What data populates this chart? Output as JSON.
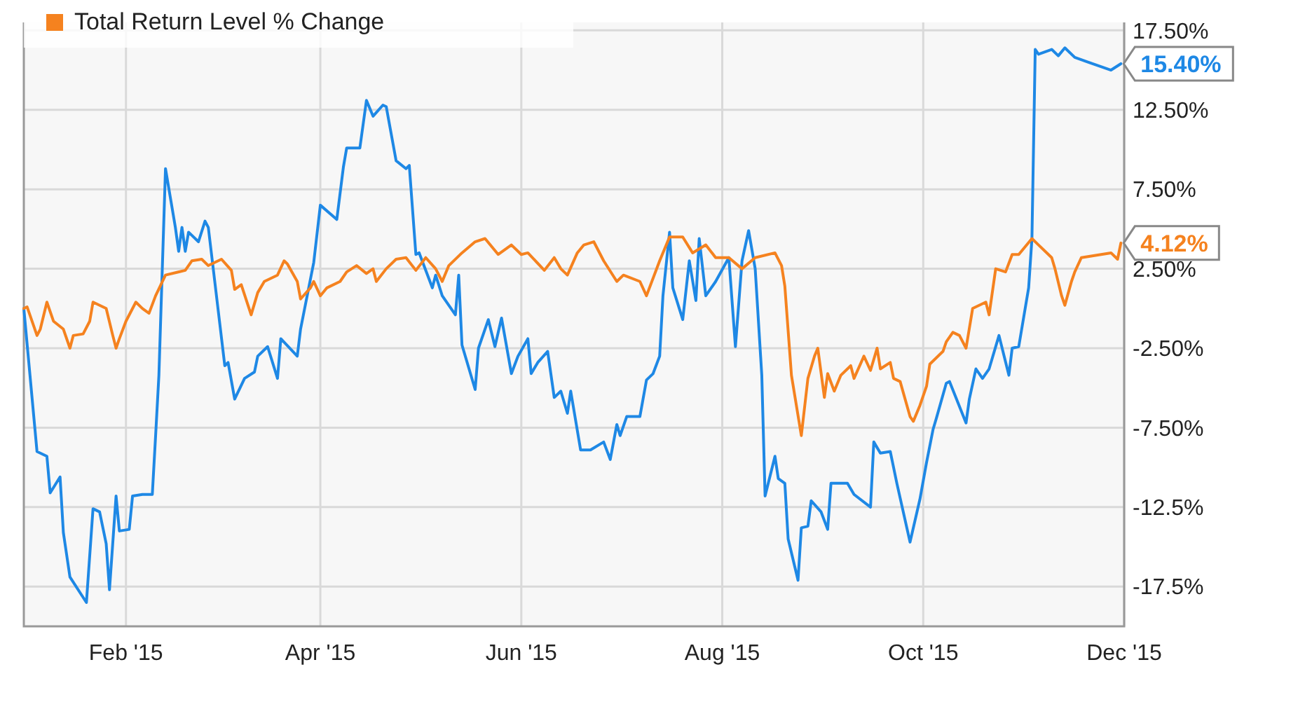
{
  "chart_data": {
    "type": "line",
    "xlim": [
      "2015-01-01",
      "2015-12-01"
    ],
    "ylim": [
      -20,
      18
    ],
    "xticks": [
      {
        "value": "2015-02-01",
        "label": "Feb '15"
      },
      {
        "value": "2015-04-01",
        "label": "Apr '15"
      },
      {
        "value": "2015-06-01",
        "label": "Jun '15"
      },
      {
        "value": "2015-08-01",
        "label": "Aug '15"
      },
      {
        "value": "2015-10-01",
        "label": "Oct '15"
      },
      {
        "value": "2015-12-01",
        "label": "Dec '15"
      }
    ],
    "yticks": [
      {
        "value": 17.5,
        "label": "17.50%"
      },
      {
        "value": 12.5,
        "label": "12.50%"
      },
      {
        "value": 7.5,
        "label": "7.50%"
      },
      {
        "value": 2.5,
        "label": "2.50%"
      },
      {
        "value": -2.5,
        "label": "-2.50%"
      },
      {
        "value": -7.5,
        "label": "-7.50%"
      },
      {
        "value": -12.5,
        "label": "-12.5%"
      },
      {
        "value": -17.5,
        "label": "-17.5%"
      }
    ],
    "grid": true,
    "legend": "top left",
    "marker": "none",
    "line_style": "solid",
    "series": [
      {
        "color": "#1e88e5",
        "x": [
          "2015-01-01",
          "2015-01-05",
          "2015-01-08",
          "2015-01-09",
          "2015-01-12",
          "2015-01-13",
          "2015-01-15",
          "2015-01-20",
          "2015-01-22",
          "2015-01-24",
          "2015-01-26",
          "2015-01-27",
          "2015-01-29",
          "2015-01-30",
          "2015-02-02",
          "2015-02-03",
          "2015-02-06",
          "2015-02-09",
          "2015-02-10",
          "2015-02-11",
          "2015-02-13",
          "2015-02-16",
          "2015-02-17",
          "2015-02-18",
          "2015-02-19",
          "2015-02-20",
          "2015-02-23",
          "2015-02-25",
          "2015-02-26",
          "2015-03-03",
          "2015-03-04",
          "2015-03-06",
          "2015-03-09",
          "2015-03-12",
          "2015-03-13",
          "2015-03-16",
          "2015-03-19",
          "2015-03-20",
          "2015-03-25",
          "2015-03-26",
          "2015-03-30",
          "2015-04-01",
          "2015-04-06",
          "2015-04-08",
          "2015-04-09",
          "2015-04-13",
          "2015-04-15",
          "2015-04-17",
          "2015-04-20",
          "2015-04-21",
          "2015-04-24",
          "2015-04-27",
          "2015-04-28",
          "2015-04-30",
          "2015-05-01",
          "2015-05-05",
          "2015-05-06",
          "2015-05-08",
          "2015-05-12",
          "2015-05-13",
          "2015-05-14",
          "2015-05-18",
          "2015-05-19",
          "2015-05-22",
          "2015-05-24",
          "2015-05-26",
          "2015-05-29",
          "2015-05-31",
          "2015-06-03",
          "2015-06-04",
          "2015-06-06",
          "2015-06-09",
          "2015-06-11",
          "2015-06-13",
          "2015-06-15",
          "2015-06-16",
          "2015-06-19",
          "2015-06-22",
          "2015-06-26",
          "2015-06-28",
          "2015-06-30",
          "2015-07-01",
          "2015-07-03",
          "2015-07-07",
          "2015-07-09",
          "2015-07-11",
          "2015-07-13",
          "2015-07-14",
          "2015-07-16",
          "2015-07-17",
          "2015-07-20",
          "2015-07-22",
          "2015-07-24",
          "2015-07-25",
          "2015-07-27",
          "2015-07-30",
          "2015-08-03",
          "2015-08-05",
          "2015-08-07",
          "2015-08-09",
          "2015-08-11",
          "2015-08-13",
          "2015-08-14",
          "2015-08-17",
          "2015-08-18",
          "2015-08-20",
          "2015-08-21",
          "2015-08-24",
          "2015-08-25",
          "2015-08-27",
          "2015-08-28",
          "2015-08-31",
          "2015-09-02",
          "2015-09-03",
          "2015-09-08",
          "2015-09-10",
          "2015-09-15",
          "2015-09-16",
          "2015-09-18",
          "2015-09-21",
          "2015-09-23",
          "2015-09-27",
          "2015-09-30",
          "2015-10-02",
          "2015-10-04",
          "2015-10-05",
          "2015-10-08",
          "2015-10-09",
          "2015-10-14",
          "2015-10-15",
          "2015-10-17",
          "2015-10-19",
          "2015-10-21",
          "2015-10-24",
          "2015-10-27",
          "2015-10-28",
          "2015-10-30",
          "2015-11-02",
          "2015-11-03",
          "2015-11-04",
          "2015-11-05",
          "2015-11-09",
          "2015-11-11",
          "2015-11-13",
          "2015-11-16",
          "2015-11-20",
          "2015-11-27",
          "2015-11-30"
        ],
        "values": [
          0,
          -9.0,
          -9.3,
          -11.6,
          -10.6,
          -14.1,
          -16.9,
          -18.5,
          -12.6,
          -12.8,
          -14.8,
          -17.7,
          -11.8,
          -14.0,
          -13.9,
          -11.8,
          -11.7,
          -11.7,
          -8.0,
          -4.2,
          8.8,
          5.1,
          3.6,
          5.1,
          3.6,
          4.8,
          4.2,
          5.5,
          5.1,
          -3.6,
          -3.4,
          -5.7,
          -4.4,
          -4.0,
          -3.0,
          -2.4,
          -4.4,
          -1.9,
          -3.0,
          -1.3,
          2.9,
          6.5,
          5.6,
          8.9,
          10.1,
          10.1,
          13.1,
          12.1,
          12.8,
          12.7,
          9.3,
          8.8,
          9.0,
          3.4,
          3.5,
          1.3,
          2.1,
          0.8,
          -0.4,
          2.1,
          -2.3,
          -5.1,
          -2.5,
          -0.7,
          -2.4,
          -0.6,
          -4.1,
          -3.0,
          -1.9,
          -4.1,
          -3.4,
          -2.7,
          -5.6,
          -5.2,
          -6.6,
          -5.2,
          -8.9,
          -8.9,
          -8.4,
          -9.5,
          -7.3,
          -8.0,
          -6.8,
          -6.8,
          -4.5,
          -4.1,
          -3.0,
          0.8,
          4.8,
          1.3,
          -0.7,
          3.0,
          0.5,
          4.4,
          0.8,
          1.7,
          3.2,
          -2.4,
          3.0,
          4.9,
          2.5,
          -4.2,
          -11.8,
          -9.3,
          -10.7,
          -11.0,
          -14.5,
          -17.1,
          -13.8,
          -13.7,
          -12.1,
          -12.8,
          -13.9,
          -11.0,
          -11.0,
          -11.7,
          -12.5,
          -8.4,
          -9.1,
          -9.0,
          -11.0,
          -14.7,
          -12.0,
          -9.7,
          -7.6,
          -6.9,
          -4.7,
          -4.6,
          -7.2,
          -5.7,
          -3.8,
          -4.4,
          -3.8,
          -1.7,
          -4.2,
          -2.5,
          -2.4,
          1.3,
          4.4,
          16.3,
          16.0,
          16.3,
          15.9,
          16.4,
          15.8,
          15.5,
          15.0,
          15.4
        ]
      },
      {
        "name": "Total Return Level % Change",
        "color": "#f5821f",
        "x": [
          "2015-01-01",
          "2015-01-02",
          "2015-01-05",
          "2015-01-06",
          "2015-01-08",
          "2015-01-10",
          "2015-01-13",
          "2015-01-15",
          "2015-01-16",
          "2015-01-19",
          "2015-01-21",
          "2015-01-22",
          "2015-01-26",
          "2015-01-28",
          "2015-01-29",
          "2015-01-30",
          "2015-02-01",
          "2015-02-04",
          "2015-02-06",
          "2015-02-08",
          "2015-02-10",
          "2015-02-13",
          "2015-02-19",
          "2015-02-21",
          "2015-02-24",
          "2015-02-26",
          "2015-03-02",
          "2015-03-05",
          "2015-03-06",
          "2015-03-08",
          "2015-03-11",
          "2015-03-13",
          "2015-03-15",
          "2015-03-19",
          "2015-03-21",
          "2015-03-22",
          "2015-03-25",
          "2015-03-26",
          "2015-03-29",
          "2015-03-30",
          "2015-04-01",
          "2015-04-03",
          "2015-04-07",
          "2015-04-09",
          "2015-04-12",
          "2015-04-15",
          "2015-04-17",
          "2015-04-18",
          "2015-04-21",
          "2015-04-24",
          "2015-04-27",
          "2015-04-30",
          "2015-05-03",
          "2015-05-06",
          "2015-05-08",
          "2015-05-10",
          "2015-05-14",
          "2015-05-18",
          "2015-05-21",
          "2015-05-25",
          "2015-05-29",
          "2015-06-01",
          "2015-06-03",
          "2015-06-08",
          "2015-06-11",
          "2015-06-13",
          "2015-06-15",
          "2015-06-18",
          "2015-06-20",
          "2015-06-23",
          "2015-06-26",
          "2015-06-30",
          "2015-07-02",
          "2015-07-07",
          "2015-07-09",
          "2015-07-13",
          "2015-07-16",
          "2015-07-20",
          "2015-07-23",
          "2015-07-27",
          "2015-07-30",
          "2015-08-03",
          "2015-08-07",
          "2015-08-11",
          "2015-08-17",
          "2015-08-19",
          "2015-08-20",
          "2015-08-22",
          "2015-08-25",
          "2015-08-27",
          "2015-08-29",
          "2015-08-30",
          "2015-09-01",
          "2015-09-02",
          "2015-09-04",
          "2015-09-06",
          "2015-09-09",
          "2015-09-10",
          "2015-09-13",
          "2015-09-15",
          "2015-09-17",
          "2015-09-18",
          "2015-09-21",
          "2015-09-22",
          "2015-09-24",
          "2015-09-27",
          "2015-09-28",
          "2015-09-30",
          "2015-10-02",
          "2015-10-03",
          "2015-10-07",
          "2015-10-08",
          "2015-10-10",
          "2015-10-12",
          "2015-10-14",
          "2015-10-16",
          "2015-10-20",
          "2015-10-21",
          "2015-10-23",
          "2015-10-26",
          "2015-10-28",
          "2015-10-30",
          "2015-11-03",
          "2015-11-05",
          "2015-11-09",
          "2015-11-10",
          "2015-11-12",
          "2015-11-13",
          "2015-11-15",
          "2015-11-16",
          "2015-11-18",
          "2015-11-27",
          "2015-11-29",
          "2015-11-30"
        ],
        "values": [
          0,
          0.1,
          -1.7,
          -1.3,
          0.4,
          -0.8,
          -1.3,
          -2.5,
          -1.7,
          -1.6,
          -0.8,
          0.4,
          0.0,
          -1.7,
          -2.5,
          -1.9,
          -0.8,
          0.4,
          0.0,
          -0.3,
          0.8,
          2.1,
          2.4,
          3.0,
          3.1,
          2.7,
          3.1,
          2.4,
          1.2,
          1.5,
          -0.4,
          1.0,
          1.7,
          2.1,
          3.0,
          2.8,
          1.7,
          0.6,
          1.3,
          1.7,
          0.8,
          1.3,
          1.7,
          2.3,
          2.7,
          2.2,
          2.5,
          1.7,
          2.5,
          3.1,
          3.2,
          2.4,
          3.2,
          2.5,
          1.7,
          2.7,
          3.5,
          4.2,
          4.4,
          3.4,
          4.0,
          3.4,
          3.5,
          2.4,
          3.2,
          2.5,
          2.1,
          3.5,
          4.0,
          4.2,
          3.0,
          1.7,
          2.1,
          1.7,
          0.8,
          3.0,
          4.5,
          4.5,
          3.5,
          4.0,
          3.2,
          3.2,
          2.5,
          3.2,
          3.5,
          2.7,
          1.4,
          -4.2,
          -8.0,
          -4.4,
          -3.0,
          -2.5,
          -5.6,
          -4.1,
          -5.2,
          -4.2,
          -3.6,
          -4.4,
          -3.0,
          -3.9,
          -2.5,
          -3.8,
          -3.4,
          -4.4,
          -4.6,
          -6.8,
          -7.1,
          -6.1,
          -4.9,
          -3.5,
          -2.7,
          -2.1,
          -1.5,
          -1.7,
          -2.5,
          0.0,
          0.4,
          -0.4,
          2.5,
          2.3,
          3.4,
          3.4,
          4.4,
          4.0,
          3.2,
          2.5,
          0.8,
          0.2,
          1.7,
          2.3,
          3.2,
          3.5,
          3.1,
          4.12
        ]
      }
    ],
    "annotations": [
      {
        "text": "15.40%",
        "x": "2015-11-30",
        "y": 15.4
      },
      {
        "text": "4.12%",
        "x": "2015-11-30",
        "y": 4.12
      }
    ]
  }
}
